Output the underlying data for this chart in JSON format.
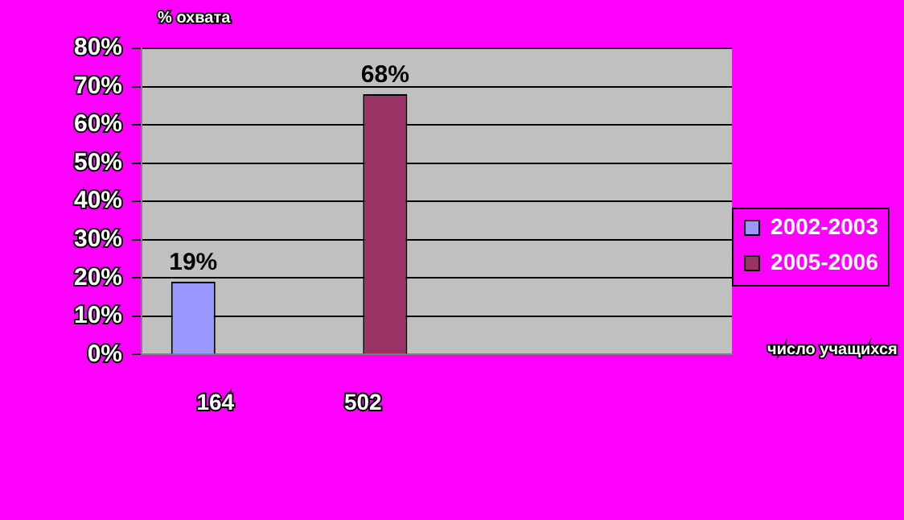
{
  "chart_data": {
    "type": "bar",
    "ylabel": "% охвата",
    "xlabel": "число учащихся",
    "categories": [
      "164",
      "502",
      null,
      null
    ],
    "series": [
      {
        "name": "2002-2003",
        "color": "#9999ff",
        "values": [
          19,
          null,
          null,
          null
        ],
        "value_labels": [
          "19%",
          null,
          null,
          null
        ]
      },
      {
        "name": "2005-2006",
        "color": "#993366",
        "values": [
          null,
          68,
          null,
          null
        ],
        "value_labels": [
          null,
          "68%",
          null,
          null
        ]
      }
    ],
    "ylim": [
      0,
      80
    ],
    "yticks": [
      {
        "value": 0,
        "label": "0%"
      },
      {
        "value": 10,
        "label": "10%"
      },
      {
        "value": 20,
        "label": "20%"
      },
      {
        "value": 30,
        "label": "30%"
      },
      {
        "value": 40,
        "label": "40%"
      },
      {
        "value": 50,
        "label": "50%"
      },
      {
        "value": 60,
        "label": "60%"
      },
      {
        "value": 70,
        "label": "70%"
      },
      {
        "value": 80,
        "label": "80%"
      }
    ],
    "grid": "y",
    "legend": "right"
  }
}
